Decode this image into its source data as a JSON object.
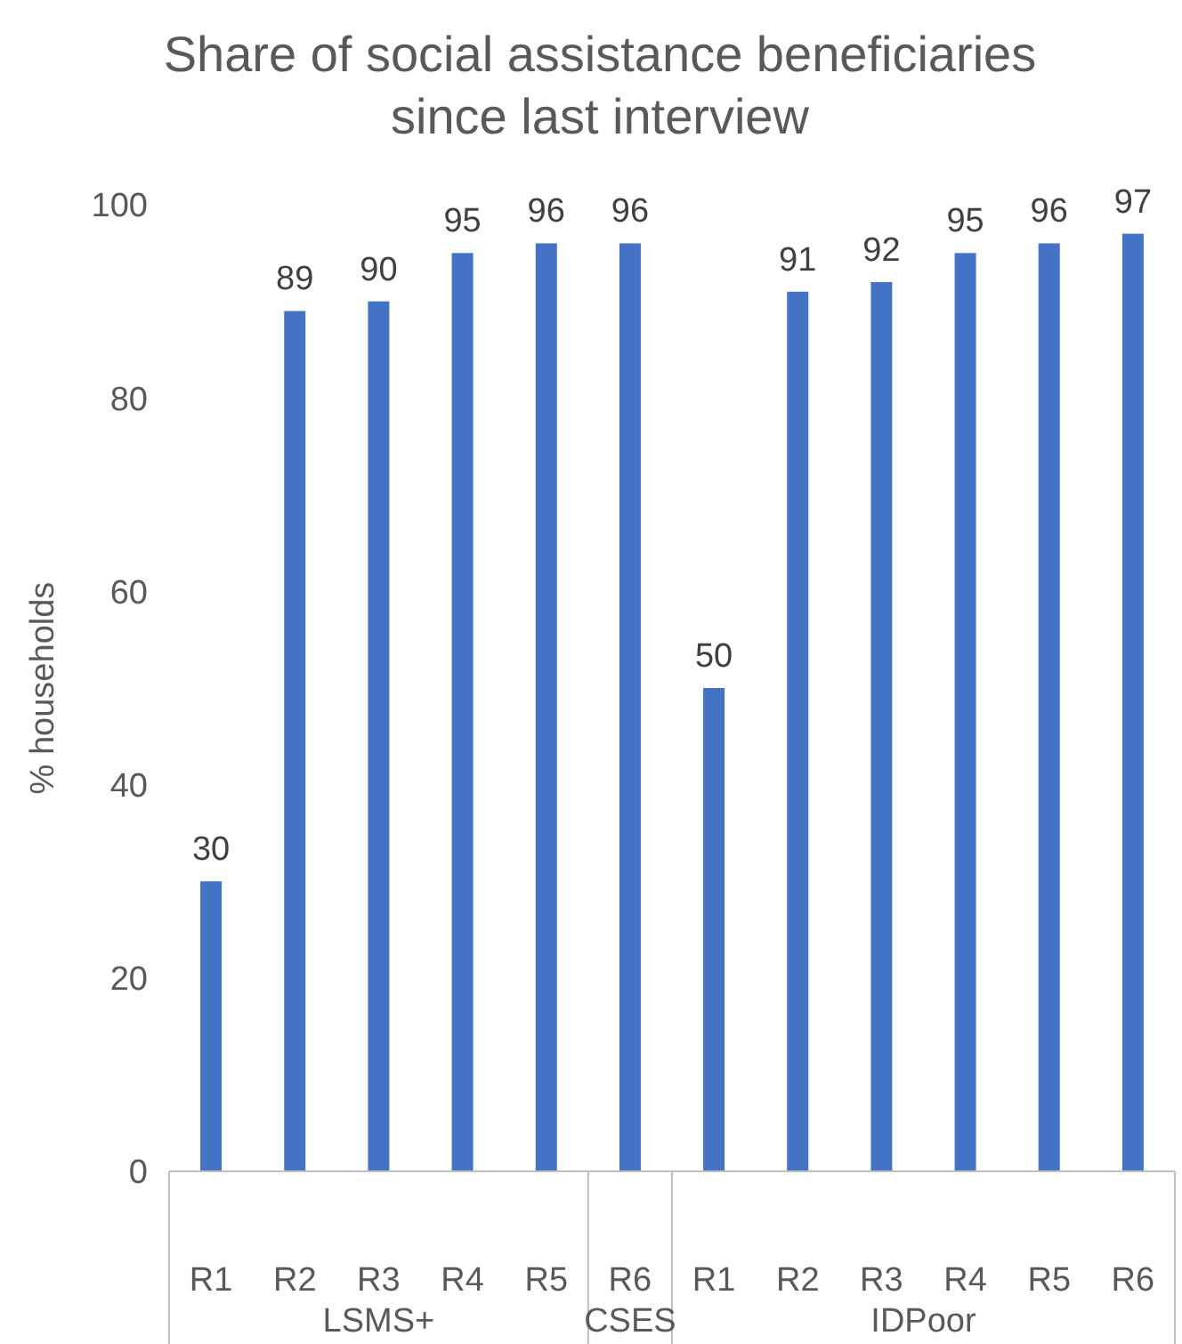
{
  "chart_data": {
    "type": "bar",
    "title": "Share of social assistance beneficiaries since last interview",
    "ylabel": "% households",
    "categories": [
      "R1",
      "R2",
      "R3",
      "R4",
      "R5",
      "R6",
      "R1",
      "R2",
      "R3",
      "R4",
      "R5",
      "R6"
    ],
    "values": [
      30,
      89,
      90,
      95,
      96,
      96,
      50,
      91,
      92,
      95,
      96,
      97
    ],
    "color": "#4472c4",
    "ylim": [
      0,
      100
    ],
    "yticks": [
      0,
      20,
      40,
      60,
      80,
      100
    ],
    "data_labels": true,
    "annotations": [
      "LSMS+",
      "CSES",
      "IDPoor"
    ]
  }
}
